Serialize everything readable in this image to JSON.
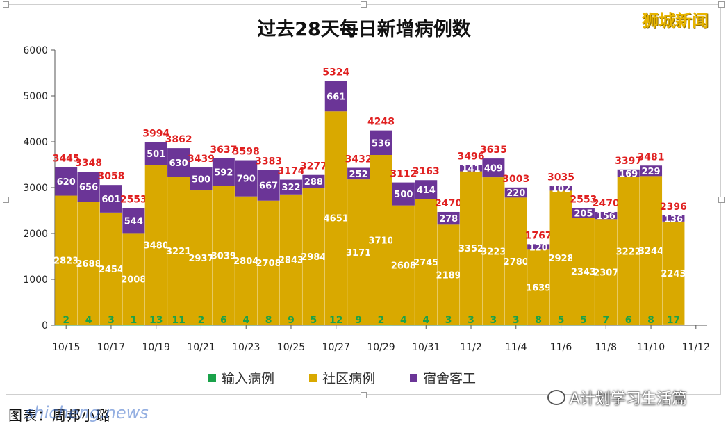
{
  "header": {
    "title": "过去28天每日新增病例数",
    "brand": "狮城新闻"
  },
  "footer": {
    "caption": "图表：周邦小璐",
    "watermark": "shicheng.news",
    "wechat_label": "A计划学习生活篇"
  },
  "colors": {
    "imported": "#1aa24a",
    "community": "#d9a900",
    "dormitory": "#6b3597",
    "total_label": "#e02020",
    "segment_label": "#ffffff",
    "imported_label": "#1aa24a"
  },
  "chart_data": {
    "type": "bar",
    "stacked": true,
    "title": "过去28天每日新增病例数",
    "ylim": [
      0,
      6000
    ],
    "yticks": [
      0,
      1000,
      2000,
      3000,
      4000,
      5000,
      6000
    ],
    "xtick_labels": [
      "10/15",
      "10/17",
      "10/19",
      "10/21",
      "10/23",
      "10/25",
      "10/27",
      "10/29",
      "10/31",
      "11/2",
      "11/4",
      "11/6",
      "11/8",
      "11/10",
      "11/12"
    ],
    "categories": [
      "10/15",
      "10/16",
      "10/17",
      "10/18",
      "10/19",
      "10/20",
      "10/21",
      "10/22",
      "10/23",
      "10/24",
      "10/25",
      "10/26",
      "10/27",
      "10/28",
      "10/29",
      "10/30",
      "10/31",
      "11/1",
      "11/2",
      "11/3",
      "11/4",
      "11/5",
      "11/6",
      "11/7",
      "11/8",
      "11/9",
      "11/10",
      "11/11"
    ],
    "series": [
      {
        "name": "输入病例",
        "values": [
          2,
          4,
          3,
          1,
          13,
          11,
          2,
          6,
          4,
          8,
          9,
          5,
          12,
          9,
          2,
          4,
          4,
          3,
          3,
          3,
          3,
          8,
          5,
          5,
          7,
          6,
          8,
          17
        ]
      },
      {
        "name": "社区病例",
        "values": [
          2823,
          2688,
          2454,
          2008,
          3480,
          3221,
          2937,
          3039,
          2804,
          2708,
          2843,
          2984,
          4651,
          3171,
          3710,
          2608,
          2745,
          2189,
          3352,
          3223,
          2780,
          1639,
          2928,
          2343,
          2307,
          3222,
          3244,
          2243
        ]
      },
      {
        "name": "宿舍客工",
        "values": [
          620,
          656,
          601,
          544,
          501,
          630,
          500,
          592,
          790,
          667,
          322,
          288,
          661,
          252,
          536,
          500,
          414,
          278,
          141,
          409,
          220,
          120,
          102,
          205,
          156,
          169,
          229,
          136
        ]
      }
    ],
    "totals": [
      3445,
      3348,
      3058,
      2553,
      3994,
      3862,
      3439,
      3637,
      3598,
      3383,
      3174,
      3277,
      5324,
      3432,
      4248,
      3112,
      3163,
      2470,
      3496,
      3635,
      3003,
      1767,
      3035,
      2553,
      2470,
      3397,
      3481,
      2396
    ],
    "legend": "bottom",
    "grid": false
  }
}
